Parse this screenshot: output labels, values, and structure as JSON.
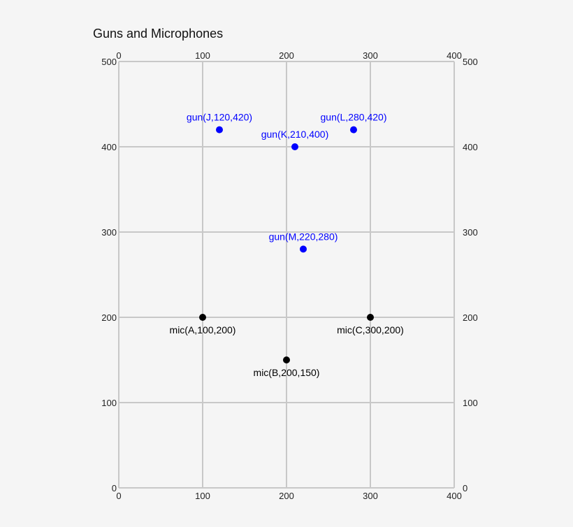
{
  "chart_data": {
    "type": "scatter",
    "title": "Guns and Microphones",
    "xlabel": "",
    "ylabel": "",
    "xlim": [
      0,
      400
    ],
    "ylim": [
      0,
      500
    ],
    "x_ticks": [
      0,
      100,
      200,
      300,
      400
    ],
    "y_ticks": [
      0,
      100,
      200,
      300,
      400,
      500
    ],
    "grid": true,
    "axes_labeled_on": [
      "top",
      "bottom",
      "left",
      "right"
    ],
    "series": [
      {
        "name": "gun",
        "color": "#0000ff",
        "points": [
          {
            "label": "gun(J,120,420)",
            "id": "J",
            "x": 120,
            "y": 420
          },
          {
            "label": "gun(K,210,400)",
            "id": "K",
            "x": 210,
            "y": 400
          },
          {
            "label": "gun(L,280,420)",
            "id": "L",
            "x": 280,
            "y": 420
          },
          {
            "label": "gun(M,220,280)",
            "id": "M",
            "x": 220,
            "y": 280
          }
        ]
      },
      {
        "name": "mic",
        "color": "#000000",
        "points": [
          {
            "label": "mic(A,100,200)",
            "id": "A",
            "x": 100,
            "y": 200
          },
          {
            "label": "mic(B,200,150)",
            "id": "B",
            "x": 200,
            "y": 150
          },
          {
            "label": "mic(C,300,200)",
            "id": "C",
            "x": 300,
            "y": 200
          }
        ]
      }
    ]
  },
  "colors": {
    "background": "#f5f5f5",
    "grid": "#c8c8c8",
    "gun": "#0000ff",
    "mic": "#000000"
  }
}
